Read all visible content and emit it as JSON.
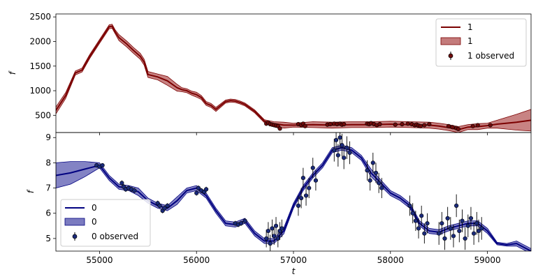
{
  "chart_data": [
    {
      "type": "line",
      "panel": "top",
      "xlabel": "",
      "ylabel": "f",
      "xlim": [
        54550,
        59450
      ],
      "ylim": [
        150,
        2560
      ],
      "yticks": [
        500,
        1000,
        1500,
        2000,
        2500
      ],
      "grid": false,
      "legend_placement": "top-right",
      "legend": [
        "1",
        "1",
        "1 observed"
      ],
      "colors": {
        "line": "#7b0000",
        "band": "#b55a5a",
        "point_fill": "#6e0b0b"
      },
      "series": [
        {
          "name": "1",
          "kind": "model",
          "x": [
            54550,
            54650,
            54750,
            54820,
            54900,
            54950,
            55000,
            55050,
            55100,
            55130,
            55160,
            55200,
            55280,
            55350,
            55420,
            55460,
            55500,
            55600,
            55700,
            55800,
            55850,
            55900,
            55950,
            56000,
            56050,
            56100,
            56150,
            56200,
            56300,
            56350,
            56400,
            56450,
            56500,
            56600,
            56700,
            56800,
            56900,
            57000,
            57200,
            57400,
            57600,
            57800,
            58000,
            58200,
            58400,
            58500,
            58600,
            58700,
            58800,
            58900,
            59000,
            59100,
            59200,
            59300,
            59450
          ],
          "y": [
            600,
            900,
            1360,
            1420,
            1700,
            1850,
            2000,
            2150,
            2300,
            2310,
            2200,
            2080,
            1950,
            1820,
            1700,
            1580,
            1330,
            1280,
            1200,
            1060,
            1020,
            1000,
            950,
            920,
            860,
            740,
            700,
            620,
            780,
            800,
            790,
            760,
            720,
            580,
            380,
            330,
            300,
            300,
            310,
            300,
            310,
            310,
            320,
            310,
            300,
            280,
            250,
            210,
            260,
            270,
            290,
            320,
            340,
            360,
            400
          ],
          "sigma": [
            70,
            60,
            40,
            40,
            40,
            40,
            40,
            40,
            40,
            40,
            40,
            60,
            60,
            60,
            60,
            60,
            60,
            60,
            90,
            70,
            40,
            40,
            40,
            50,
            40,
            40,
            40,
            40,
            30,
            30,
            30,
            30,
            30,
            30,
            30,
            40,
            60,
            40,
            60,
            60,
            60,
            60,
            60,
            60,
            60,
            60,
            60,
            60,
            50,
            60,
            50,
            80,
            120,
            160,
            220
          ]
        },
        {
          "name": "1 observed",
          "kind": "observed",
          "x": [
            56720,
            56740,
            56760,
            56780,
            56800,
            56820,
            56840,
            56860,
            57050,
            57080,
            57100,
            57120,
            57350,
            57380,
            57420,
            57450,
            57480,
            57500,
            57520,
            57760,
            57780,
            57800,
            57830,
            57860,
            57890,
            58050,
            58120,
            58180,
            58220,
            58250,
            58270,
            58290,
            58310,
            58350,
            58400,
            58600,
            58640,
            58680,
            58700,
            58850,
            58900,
            59030
          ],
          "y": [
            330,
            350,
            320,
            310,
            300,
            290,
            280,
            230,
            320,
            300,
            330,
            280,
            310,
            320,
            330,
            320,
            330,
            310,
            320,
            330,
            320,
            340,
            320,
            300,
            320,
            310,
            320,
            330,
            320,
            300,
            310,
            290,
            280,
            300,
            320,
            280,
            260,
            240,
            220,
            280,
            300,
            300
          ],
          "yerr": [
            15,
            15,
            15,
            15,
            15,
            15,
            15,
            15,
            15,
            15,
            15,
            15,
            15,
            15,
            15,
            15,
            15,
            15,
            15,
            15,
            15,
            15,
            15,
            15,
            15,
            15,
            15,
            15,
            15,
            15,
            15,
            15,
            15,
            15,
            15,
            15,
            15,
            15,
            15,
            15,
            15,
            15
          ]
        }
      ]
    },
    {
      "type": "line",
      "panel": "bottom",
      "xlabel": "t",
      "ylabel": "f",
      "xlim": [
        54550,
        59450
      ],
      "ylim": [
        4.5,
        9.2
      ],
      "yticks": [
        5,
        6,
        7,
        8,
        9
      ],
      "xticks": [
        55000,
        56000,
        57000,
        58000,
        59000
      ],
      "grid": false,
      "legend_placement": "bottom-left",
      "legend": [
        "0",
        "0",
        "0 observed"
      ],
      "colors": {
        "line": "#000080",
        "band": "#5a5ab0",
        "point_fill": "#1a2a7a"
      },
      "series": [
        {
          "name": "0",
          "kind": "model",
          "x": [
            54550,
            54700,
            54850,
            55000,
            55100,
            55200,
            55300,
            55400,
            55500,
            55600,
            55700,
            55800,
            55900,
            56000,
            56100,
            56200,
            56300,
            56400,
            56500,
            56600,
            56700,
            56800,
            56900,
            57000,
            57100,
            57200,
            57300,
            57400,
            57500,
            57600,
            57700,
            57800,
            57900,
            58000,
            58100,
            58200,
            58300,
            58400,
            58500,
            58600,
            58700,
            58800,
            58900,
            59000,
            59100,
            59200,
            59300,
            59450
          ],
          "y": [
            7.5,
            7.6,
            7.75,
            7.9,
            7.4,
            7.05,
            7.0,
            6.85,
            6.5,
            6.3,
            6.2,
            6.5,
            6.9,
            7.0,
            6.7,
            6.1,
            5.6,
            5.55,
            5.7,
            5.2,
            4.9,
            4.9,
            5.3,
            6.3,
            7.0,
            7.5,
            7.9,
            8.5,
            8.6,
            8.5,
            8.2,
            7.6,
            7.2,
            6.8,
            6.6,
            6.3,
            5.6,
            5.3,
            5.25,
            5.4,
            5.5,
            5.6,
            5.6,
            5.3,
            4.8,
            4.75,
            4.8,
            4.5
          ],
          "sigma": [
            0.5,
            0.45,
            0.3,
            0.1,
            0.1,
            0.1,
            0.1,
            0.15,
            0.1,
            0.1,
            0.1,
            0.15,
            0.1,
            0.1,
            0.1,
            0.1,
            0.1,
            0.1,
            0.1,
            0.1,
            0.1,
            0.1,
            0.12,
            0.1,
            0.1,
            0.1,
            0.1,
            0.1,
            0.1,
            0.1,
            0.1,
            0.15,
            0.12,
            0.1,
            0.1,
            0.1,
            0.1,
            0.1,
            0.1,
            0.1,
            0.1,
            0.1,
            0.1,
            0.1,
            0.05,
            0.05,
            0.1,
            0.1
          ]
        },
        {
          "name": "0 observed",
          "kind": "observed",
          "x": [
            54970,
            55000,
            55030,
            55230,
            55250,
            55270,
            55300,
            55330,
            55360,
            55600,
            55620,
            55650,
            55670,
            55700,
            56000,
            56020,
            56050,
            56080,
            56100,
            56400,
            56430,
            56460,
            56500,
            56720,
            56740,
            56760,
            56780,
            56800,
            56820,
            56840,
            56860,
            56880,
            57050,
            57080,
            57100,
            57130,
            57160,
            57200,
            57230,
            57420,
            57440,
            57460,
            57480,
            57500,
            57520,
            57550,
            57580,
            57760,
            57790,
            57820,
            57850,
            57880,
            57910,
            58200,
            58230,
            58260,
            58290,
            58320,
            58350,
            58380,
            58500,
            58530,
            58560,
            58590,
            58620,
            58650,
            58680,
            58710,
            58740,
            58770,
            58800,
            58830,
            58860,
            58890,
            58910,
            58940
          ],
          "y": [
            7.9,
            7.85,
            7.9,
            7.2,
            7.05,
            6.95,
            7.0,
            6.95,
            6.9,
            6.4,
            6.3,
            6.1,
            6.2,
            6.3,
            6.8,
            7.0,
            6.9,
            6.85,
            6.95,
            5.6,
            5.55,
            5.6,
            5.7,
            5.0,
            5.3,
            4.8,
            5.4,
            5.1,
            5.5,
            5.0,
            5.3,
            5.4,
            6.3,
            6.6,
            7.4,
            6.7,
            7.0,
            7.8,
            7.3,
            8.5,
            8.9,
            8.3,
            9.0,
            8.7,
            8.2,
            8.6,
            8.4,
            7.7,
            7.3,
            8.0,
            7.6,
            7.2,
            7.0,
            6.3,
            6.0,
            5.7,
            5.4,
            5.9,
            5.2,
            5.6,
            5.2,
            5.6,
            5.0,
            5.8,
            5.4,
            5.1,
            6.3,
            5.3,
            5.7,
            5.0,
            5.5,
            5.8,
            5.2,
            5.6,
            5.3,
            5.4
          ],
          "yerr": [
            0.08,
            0.08,
            0.08,
            0.1,
            0.1,
            0.1,
            0.1,
            0.1,
            0.1,
            0.1,
            0.1,
            0.1,
            0.1,
            0.1,
            0.1,
            0.1,
            0.1,
            0.1,
            0.1,
            0.1,
            0.1,
            0.1,
            0.1,
            0.35,
            0.35,
            0.35,
            0.35,
            0.35,
            0.35,
            0.35,
            0.35,
            0.35,
            0.4,
            0.4,
            0.4,
            0.4,
            0.4,
            0.4,
            0.4,
            0.45,
            0.45,
            0.45,
            0.45,
            0.45,
            0.45,
            0.45,
            0.45,
            0.4,
            0.4,
            0.4,
            0.4,
            0.4,
            0.4,
            0.4,
            0.4,
            0.4,
            0.4,
            0.4,
            0.4,
            0.4,
            0.45,
            0.45,
            0.45,
            0.45,
            0.45,
            0.45,
            0.45,
            0.45,
            0.45,
            0.45,
            0.45,
            0.45,
            0.45,
            0.45,
            0.45,
            0.45
          ]
        }
      ]
    }
  ]
}
